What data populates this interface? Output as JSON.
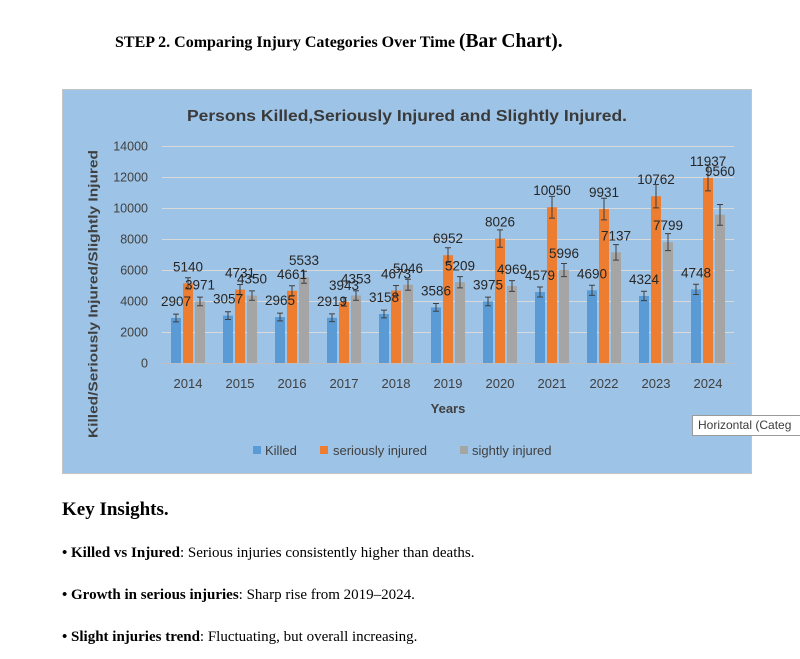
{
  "document": {
    "heading_main": "STEP 2. Comparing Injury Categories Over Time",
    "heading_suffix": "(Bar Chart).",
    "insights_title": "Key Insights.",
    "insights": [
      {
        "bullet": "•",
        "term": "Killed vs Injured",
        "text": ": Serious injuries consistently higher than deaths."
      },
      {
        "bullet": "•",
        "term": "Growth in serious injuries",
        "text": ": Sharp rise from 2019–2024."
      },
      {
        "bullet": "•",
        "term": "Slight injuries trend",
        "text": ": Fluctuating, but overall increasing."
      }
    ]
  },
  "tooltip": {
    "text": "Horizontal (Categ"
  },
  "chart_data": {
    "type": "bar",
    "title": "Persons Killed,Seriously Injured and Slightly Injured.",
    "xlabel": "Years",
    "ylabel": "Killed/Seriously Injured/Slightly Injured",
    "categories": [
      "2014",
      "2015",
      "2016",
      "2017",
      "2018",
      "2019",
      "2020",
      "2021",
      "2022",
      "2023",
      "2024"
    ],
    "series": [
      {
        "name": "Killed",
        "color": "#5b9bd5",
        "values": [
          2907,
          3057,
          2965,
          2919,
          3158,
          3586,
          3975,
          4579,
          4690,
          4324,
          4748
        ]
      },
      {
        "name": "seriously injured",
        "color": "#ed7d31",
        "values": [
          5140,
          4731,
          4661,
          3943,
          4673,
          6952,
          8026,
          10050,
          9931,
          10762,
          11937
        ]
      },
      {
        "name": "sightly injured",
        "color": "#a5a5a5",
        "values": [
          3971,
          4350,
          5533,
          4353,
          5046,
          5209,
          4969,
          5996,
          7137,
          7799,
          9560
        ]
      }
    ],
    "ylim": [
      0,
      14000
    ],
    "yticks": [
      0,
      2000,
      4000,
      6000,
      8000,
      10000,
      12000,
      14000
    ],
    "grid": true,
    "legend": "bottom",
    "error_bars": true,
    "background": "#9dc3e6"
  }
}
